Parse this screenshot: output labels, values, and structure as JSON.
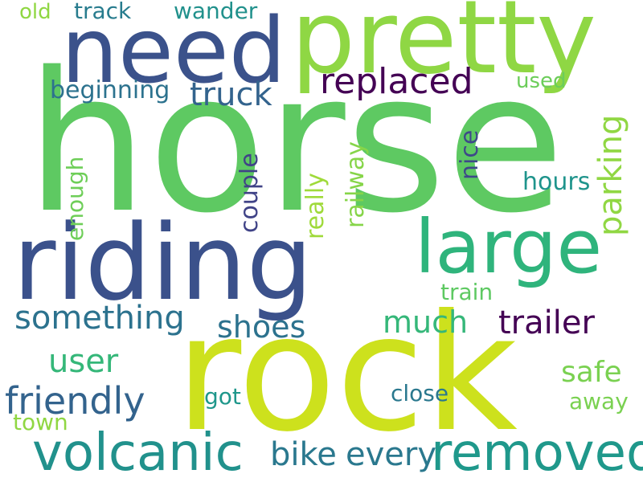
{
  "words": {
    "horse": {
      "text": "horse",
      "color": "#5ec962"
    },
    "rock": {
      "text": "rock",
      "color": "#cde11d"
    },
    "riding": {
      "text": "riding",
      "color": "#3b518b"
    },
    "pretty": {
      "text": "pretty",
      "color": "#8fd744"
    },
    "need": {
      "text": "need",
      "color": "#3b528b"
    },
    "large": {
      "text": "large",
      "color": "#2fb47c"
    },
    "volcanic": {
      "text": "volcanic",
      "color": "#21918c"
    },
    "removed": {
      "text": "removed",
      "color": "#1f988b"
    },
    "replaced": {
      "text": "replaced",
      "color": "#440154"
    },
    "friendly": {
      "text": "friendly",
      "color": "#33638d"
    },
    "something": {
      "text": "something",
      "color": "#2c728e"
    },
    "truck": {
      "text": "truck",
      "color": "#33638d"
    },
    "trailer": {
      "text": "trailer",
      "color": "#440154"
    },
    "shoes": {
      "text": "shoes",
      "color": "#2c728e"
    },
    "much": {
      "text": "much",
      "color": "#35b779"
    },
    "user": {
      "text": "user",
      "color": "#35b779"
    },
    "bike": {
      "text": "bike",
      "color": "#2a788e"
    },
    "every": {
      "text": "every",
      "color": "#2a788e"
    },
    "beginning": {
      "text": "beginning",
      "color": "#2c728e"
    },
    "parking": {
      "text": "parking",
      "color": "#90d743"
    },
    "safe": {
      "text": "safe",
      "color": "#7ad151"
    },
    "hours": {
      "text": "hours",
      "color": "#1f948c"
    },
    "used": {
      "text": "used",
      "color": "#6ccd5a"
    },
    "track": {
      "text": "track",
      "color": "#287c8e"
    },
    "wander": {
      "text": "wander",
      "color": "#21918c"
    },
    "old": {
      "text": "old",
      "color": "#90d743"
    },
    "close": {
      "text": "close",
      "color": "#2a788e"
    },
    "got": {
      "text": "got",
      "color": "#1f978b"
    },
    "away": {
      "text": "away",
      "color": "#7ad151"
    },
    "town": {
      "text": "town",
      "color": "#90d743"
    },
    "train": {
      "text": "train",
      "color": "#5ec962"
    },
    "nice": {
      "text": "nice",
      "color": "#3e4989"
    },
    "couple": {
      "text": "couple",
      "color": "#404387"
    },
    "really": {
      "text": "really",
      "color": "#9fda3a"
    },
    "railway": {
      "text": "railway",
      "color": "#86d549"
    },
    "enough": {
      "text": "enough",
      "color": "#6ece58"
    }
  }
}
